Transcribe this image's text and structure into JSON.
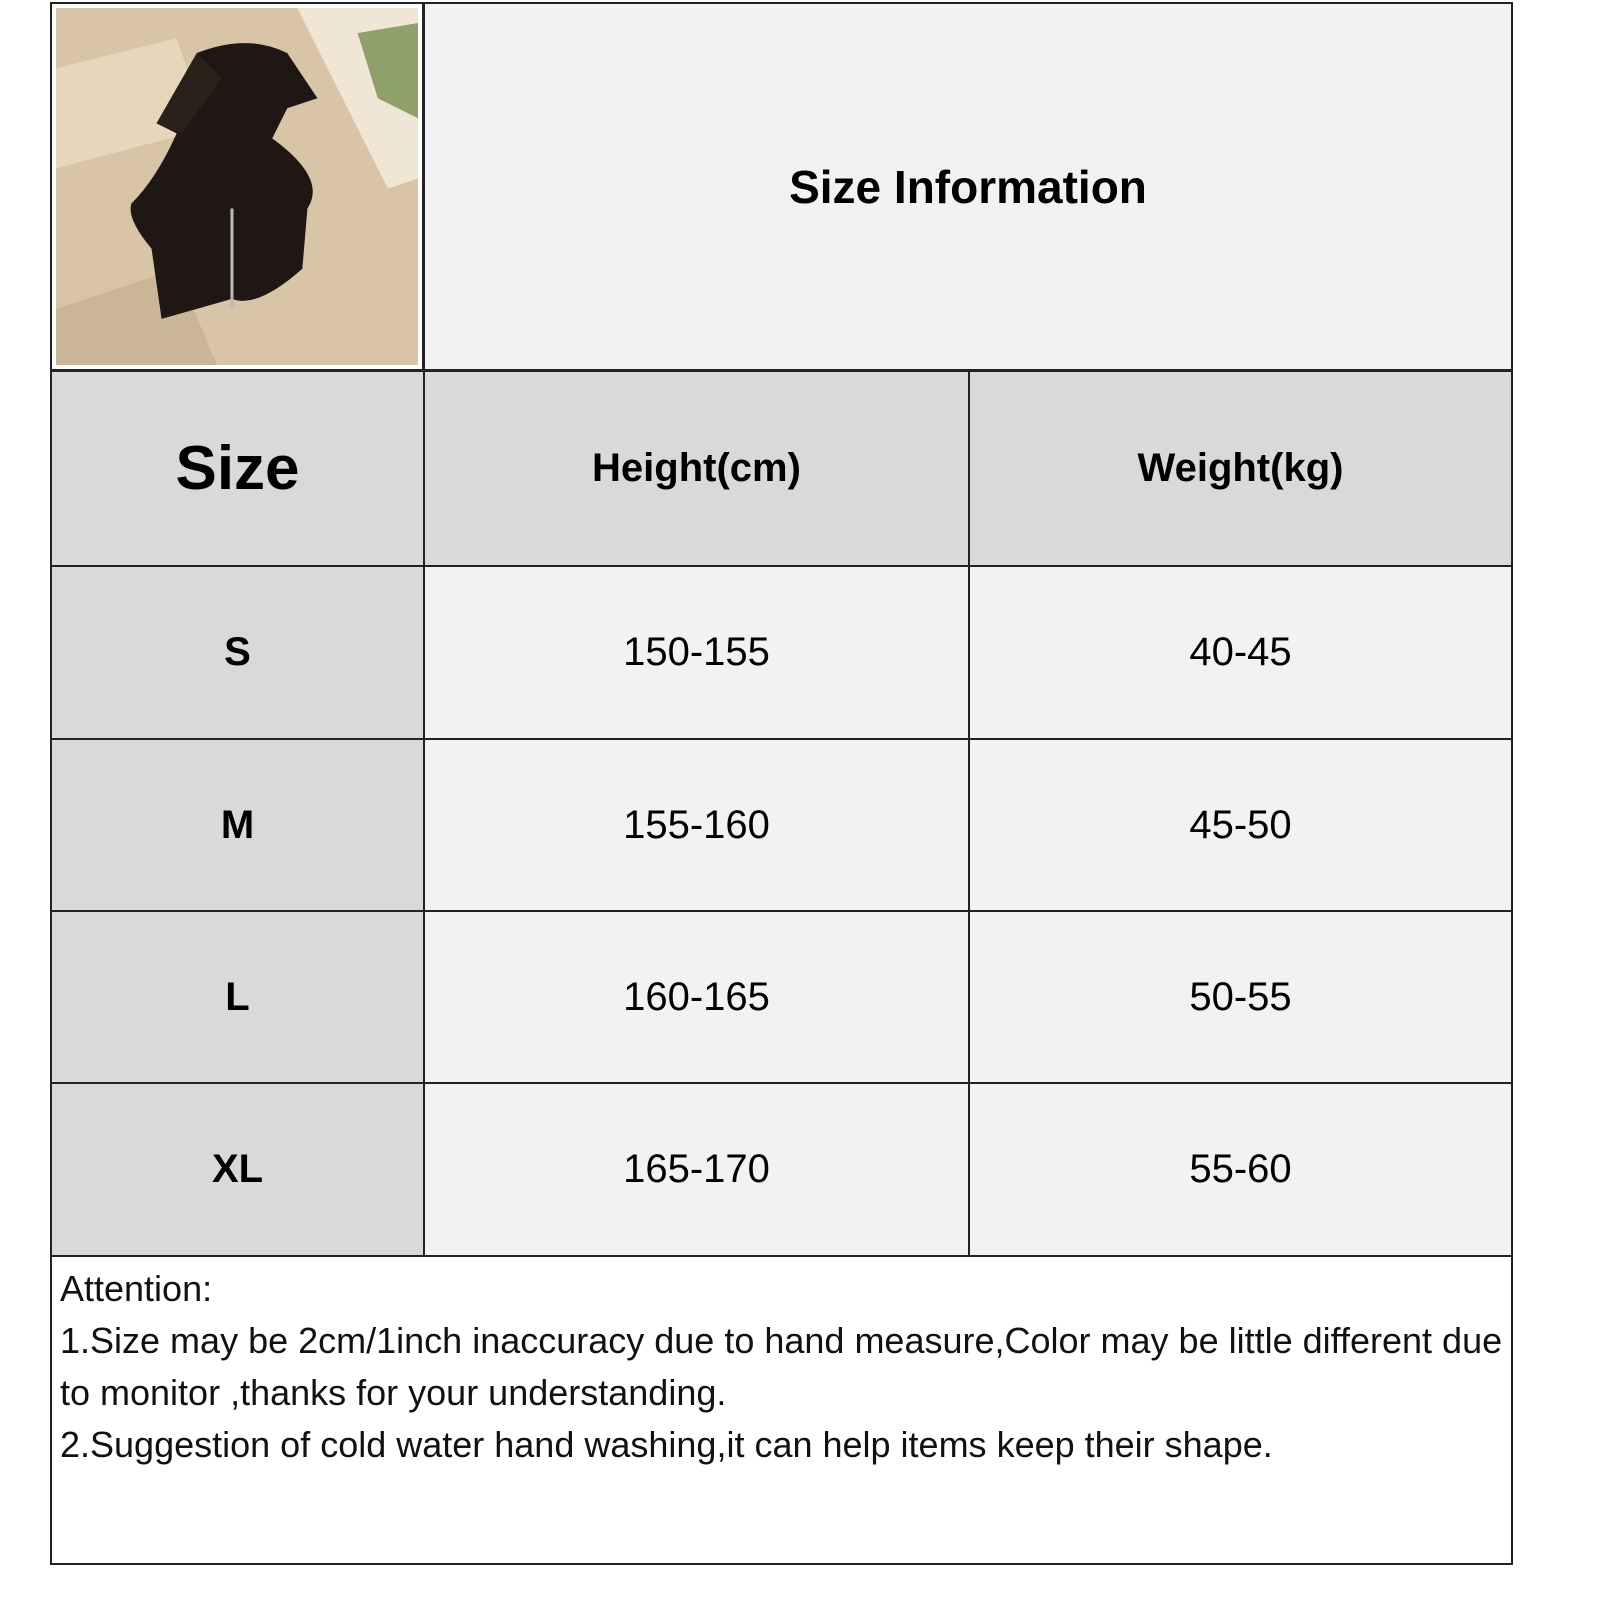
{
  "title": "Size Information",
  "product_image_alt": "black zip-front halter crop top",
  "headers": [
    "Size",
    "Height(cm)",
    "Weight(kg)"
  ],
  "rows": [
    {
      "size": "S",
      "height": "150-155",
      "weight": "40-45"
    },
    {
      "size": "M",
      "height": "155-160",
      "weight": "45-50"
    },
    {
      "size": "L",
      "height": "160-165",
      "weight": "50-55"
    },
    {
      "size": "XL",
      "height": "165-170",
      "weight": "55-60"
    }
  ],
  "attention": {
    "heading": "Attention:",
    "line1": "1.Size may be 2cm/1inch inaccuracy due to hand measure,Color may be little different due to monitor ,thanks for your understanding.",
    "line2": "2.Suggestion of cold water hand washing,it can help items keep their shape."
  },
  "colors": {
    "header_gray": "#d9d9d9",
    "cell_light": "#f2f2f2",
    "border": "#222222"
  }
}
